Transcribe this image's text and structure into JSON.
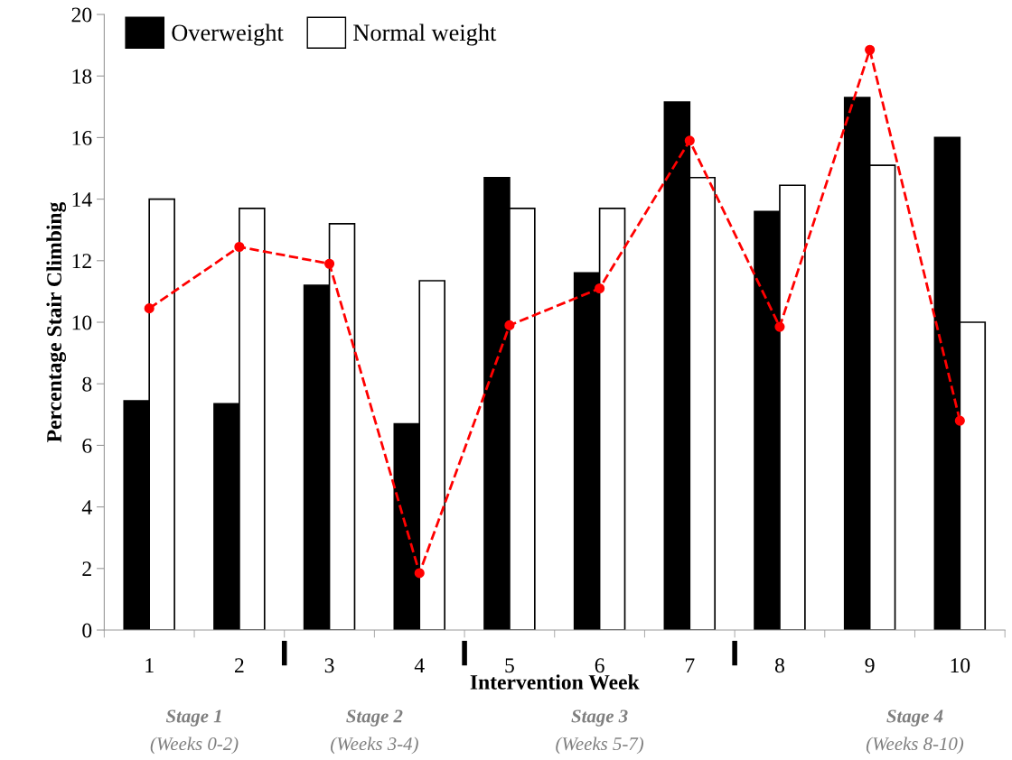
{
  "chart_data": {
    "type": "bar",
    "xlabel": "Intervention Week",
    "ylabel": "Percentage Stair Climbing",
    "categories": [
      "1",
      "2",
      "3",
      "4",
      "5",
      "6",
      "7",
      "8",
      "9",
      "10"
    ],
    "series": [
      {
        "name": "Overweight",
        "color": "#000000",
        "values": [
          7.45,
          7.35,
          11.2,
          6.7,
          14.7,
          11.6,
          17.15,
          13.6,
          17.3,
          16.0
        ]
      },
      {
        "name": "Normal weight",
        "color": "#ffffff",
        "values": [
          14.0,
          13.7,
          13.2,
          11.35,
          13.7,
          13.7,
          14.7,
          14.45,
          15.1,
          10.0
        ]
      },
      {
        "type": "line",
        "color": "#ff0000",
        "marker": "circle",
        "line_style": "dashed",
        "values": [
          10.45,
          12.45,
          11.9,
          1.85,
          9.9,
          11.1,
          15.9,
          9.85,
          18.85,
          6.8
        ]
      }
    ],
    "ylim": [
      0,
      20
    ],
    "yticks": [
      0,
      2,
      4,
      6,
      8,
      10,
      12,
      14,
      16,
      18,
      20
    ],
    "grid": false,
    "legend": "top left",
    "annotations": [
      "Stage 1",
      "(Weeks 0-2)",
      "Stage 2",
      "(Weeks 3-4)",
      "Stage 3",
      "(Weeks 5-7)",
      "Stage 4",
      "(Weeks 8-10)"
    ]
  }
}
